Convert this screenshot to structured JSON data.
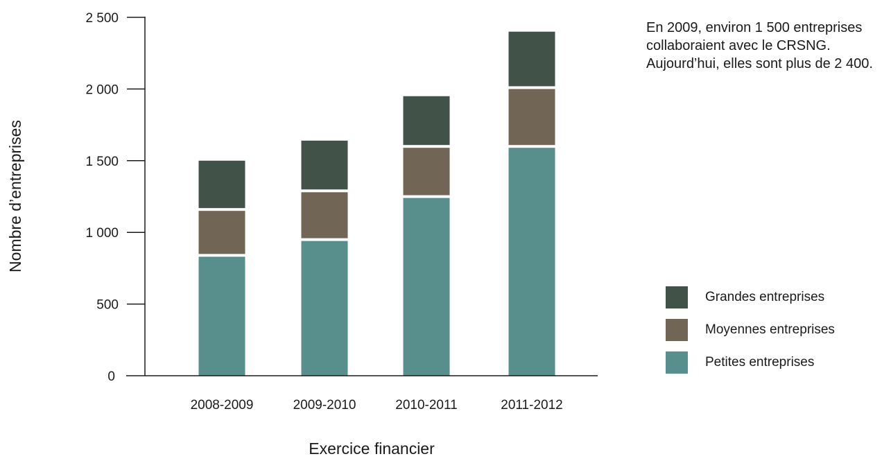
{
  "chart_data": {
    "type": "bar",
    "stacked": true,
    "title": "",
    "xlabel": "Exercice financier",
    "ylabel": "Nombre d’entreprises",
    "ylim": [
      0,
      2500
    ],
    "yticks": [
      0,
      500,
      1000,
      1500,
      2000,
      2500
    ],
    "ytick_labels": [
      "0",
      "500",
      "1 000",
      "1 500",
      "2 000",
      "2 500"
    ],
    "categories": [
      "2008-2009",
      "2009-2010",
      "2010-2011",
      "2011-2012"
    ],
    "series": [
      {
        "name": "Petites entreprises",
        "values": [
          830,
          940,
          1240,
          1590
        ],
        "color": "#588f8c"
      },
      {
        "name": "Moyennes entreprises",
        "values": [
          320,
          340,
          350,
          410
        ],
        "color": "#716555"
      },
      {
        "name": "Grandes entreprises",
        "values": [
          350,
          360,
          360,
          400
        ],
        "color": "#415349"
      }
    ],
    "legend_order": [
      "Grandes entreprises",
      "Moyennes entreprises",
      "Petites entreprises"
    ],
    "legend_position": "right",
    "grid": false,
    "annotation": "En 2009, environ 1 500 entreprises collaboraient avec le CRSNG. Aujourd’hui, elles sont plus de 2 400."
  }
}
